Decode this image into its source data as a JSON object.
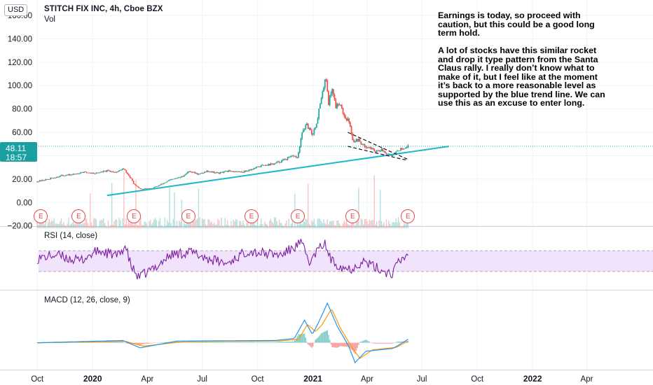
{
  "header": {
    "currency": "USD",
    "symbol_title": "STITCH FIX INC, 4h, Cboe BZX",
    "volume_label": "Vol"
  },
  "annotation_text": "Earnings is today, so proceed with caution, but this could be a good long term hold.\n\nA lot of stocks have this similar rocket and drop it type pattern from the Santa Claus rally. I really don’t know what to make of it, but I feel like at the moment it’s back to a more reasonable level as supported by the blue trend line. We can use this as an excuse to enter long.",
  "price_tag": {
    "price": "48.11",
    "countdown": "18:57"
  },
  "earnings_marker_label": "E",
  "earnings_markers": [
    "2019-10-07",
    "2019-12-09",
    "2020-03-10",
    "2020-06-08",
    "2020-09-21",
    "2020-12-07",
    "2021-03-08",
    "2021-06-08"
  ],
  "colors": {
    "up": "#26a69a",
    "down": "#ef5350",
    "trendline": "#1fb8c8",
    "rsi_line": "#7b1fa2",
    "rsi_band": "#f1e3fb",
    "macd_line": "#2196f3",
    "signal_line": "#ff9800",
    "price_line": "#26a69a",
    "earnings": "#e8454d"
  },
  "indicators": {
    "rsi_label": "RSI (14, close)",
    "macd_label": "MACD (12, 26, close, 9)"
  },
  "chart_data": {
    "type": "candlestick",
    "symbol": "STITCH FIX INC",
    "interval": "4h",
    "exchange": "Cboe BZX",
    "current_price": 48.11,
    "x_axis": {
      "range": [
        "2019-09-25",
        "2022-07-20"
      ],
      "tick_labels": [
        "Oct",
        "2020",
        "Apr",
        "Jul",
        "Oct",
        "2021",
        "Apr",
        "Jul",
        "Oct",
        "2022",
        "Apr"
      ],
      "tick_dates": [
        "2019-10-01",
        "2020-01-01",
        "2020-04-01",
        "2020-07-01",
        "2020-10-01",
        "2021-01-01",
        "2021-04-01",
        "2021-07-01",
        "2021-10-01",
        "2022-01-01",
        "2022-04-01"
      ]
    },
    "y_axis": {
      "range": [
        -22,
        172
      ],
      "tick_labels": [
        "160.00",
        "140.00",
        "120.00",
        "100.00",
        "80.00",
        "60.00",
        "40.00",
        "20.00",
        "0.00",
        "−20.00"
      ],
      "tick_values": [
        160,
        140,
        120,
        100,
        80,
        60,
        40,
        20,
        0,
        -20
      ]
    },
    "price_path": [
      [
        "2019-10-01",
        18
      ],
      [
        "2019-10-20",
        20
      ],
      [
        "2019-11-10",
        23
      ],
      [
        "2019-11-30",
        24
      ],
      [
        "2019-12-15",
        26
      ],
      [
        "2020-01-05",
        25
      ],
      [
        "2020-01-25",
        27
      ],
      [
        "2020-02-10",
        26
      ],
      [
        "2020-02-21",
        29
      ],
      [
        "2020-03-01",
        23
      ],
      [
        "2020-03-05",
        20
      ],
      [
        "2020-03-12",
        14
      ],
      [
        "2020-03-23",
        11
      ],
      [
        "2020-04-08",
        12
      ],
      [
        "2020-04-22",
        15
      ],
      [
        "2020-05-08",
        19
      ],
      [
        "2020-05-28",
        22
      ],
      [
        "2020-06-10",
        27
      ],
      [
        "2020-06-25",
        24
      ],
      [
        "2020-07-10",
        27
      ],
      [
        "2020-07-28",
        25
      ],
      [
        "2020-08-15",
        27
      ],
      [
        "2020-09-05",
        26
      ],
      [
        "2020-09-25",
        29
      ],
      [
        "2020-10-10",
        32
      ],
      [
        "2020-10-28",
        33
      ],
      [
        "2020-11-12",
        36
      ],
      [
        "2020-11-30",
        40
      ],
      [
        "2020-12-06",
        38
      ],
      [
        "2020-12-09",
        45
      ],
      [
        "2020-12-15",
        62
      ],
      [
        "2020-12-22",
        66
      ],
      [
        "2020-12-31",
        58
      ],
      [
        "2021-01-07",
        68
      ],
      [
        "2021-01-12",
        82
      ],
      [
        "2021-01-18",
        95
      ],
      [
        "2021-01-22",
        111
      ],
      [
        "2021-01-27",
        85
      ],
      [
        "2021-02-02",
        98
      ],
      [
        "2021-02-08",
        82
      ],
      [
        "2021-02-15",
        86
      ],
      [
        "2021-02-22",
        74
      ],
      [
        "2021-03-01",
        70
      ],
      [
        "2021-03-05",
        62
      ],
      [
        "2021-03-09",
        52
      ],
      [
        "2021-03-17",
        54
      ],
      [
        "2021-03-25",
        49
      ],
      [
        "2021-04-05",
        47
      ],
      [
        "2021-04-15",
        44
      ],
      [
        "2021-04-25",
        45
      ],
      [
        "2021-05-05",
        42
      ],
      [
        "2021-05-14",
        40
      ],
      [
        "2021-05-21",
        44
      ],
      [
        "2021-05-28",
        46
      ],
      [
        "2021-06-08",
        48.11
      ]
    ],
    "trend_line": {
      "start": [
        "2020-01-25",
        6
      ],
      "end": [
        "2021-08-15",
        48
      ]
    },
    "wedge_lines": [
      {
        "start": [
          "2021-02-28",
          60
        ],
        "end": [
          "2021-06-07",
          37
        ]
      },
      {
        "start": [
          "2021-02-28",
          48
        ],
        "end": [
          "2021-06-07",
          36
        ]
      }
    ],
    "rsi": {
      "range": [
        0,
        100
      ],
      "upper_band": 70,
      "lower_band": 30,
      "path": [
        [
          "2019-10-01",
          55
        ],
        [
          "2019-11-01",
          62
        ],
        [
          "2019-12-10",
          50
        ],
        [
          "2020-01-10",
          70
        ],
        [
          "2020-02-12",
          60
        ],
        [
          "2020-02-24",
          80
        ],
        [
          "2020-03-05",
          40
        ],
        [
          "2020-03-17",
          18
        ],
        [
          "2020-04-10",
          35
        ],
        [
          "2020-05-10",
          62
        ],
        [
          "2020-06-10",
          68
        ],
        [
          "2020-07-10",
          55
        ],
        [
          "2020-08-10",
          45
        ],
        [
          "2020-09-15",
          70
        ],
        [
          "2020-10-10",
          65
        ],
        [
          "2020-11-10",
          62
        ],
        [
          "2020-12-12",
          85
        ],
        [
          "2020-12-28",
          45
        ],
        [
          "2021-01-05",
          65
        ],
        [
          "2021-01-20",
          85
        ],
        [
          "2021-02-01",
          50
        ],
        [
          "2021-02-20",
          38
        ],
        [
          "2021-03-05",
          35
        ],
        [
          "2021-03-25",
          50
        ],
        [
          "2021-04-20",
          35
        ],
        [
          "2021-05-12",
          25
        ],
        [
          "2021-05-22",
          45
        ],
        [
          "2021-06-08",
          65
        ]
      ]
    },
    "macd": {
      "range": [
        -8,
        16
      ],
      "macd_path": [
        [
          "2019-10-01",
          0
        ],
        [
          "2020-02-20",
          0.8
        ],
        [
          "2020-03-20",
          -1.8
        ],
        [
          "2020-05-20",
          0.6
        ],
        [
          "2020-10-30",
          0.8
        ],
        [
          "2020-12-01",
          1.5
        ],
        [
          "2020-12-18",
          8
        ],
        [
          "2020-12-31",
          3
        ],
        [
          "2021-01-10",
          7
        ],
        [
          "2021-01-25",
          14
        ],
        [
          "2021-02-10",
          6
        ],
        [
          "2021-03-01",
          -1
        ],
        [
          "2021-03-12",
          -7
        ],
        [
          "2021-03-30",
          -3
        ],
        [
          "2021-05-14",
          -2
        ],
        [
          "2021-06-08",
          1.2
        ]
      ],
      "signal_path": [
        [
          "2019-10-01",
          0
        ],
        [
          "2020-02-25",
          0.5
        ],
        [
          "2020-03-25",
          -1.2
        ],
        [
          "2020-06-01",
          0.4
        ],
        [
          "2020-11-05",
          0.6
        ],
        [
          "2020-12-08",
          1.2
        ],
        [
          "2020-12-23",
          6.5
        ],
        [
          "2021-01-05",
          4
        ],
        [
          "2021-01-15",
          6
        ],
        [
          "2021-02-01",
          12
        ],
        [
          "2021-02-16",
          5
        ],
        [
          "2021-03-08",
          -2
        ],
        [
          "2021-03-20",
          -5.5
        ],
        [
          "2021-04-10",
          -2.5
        ],
        [
          "2021-05-20",
          -1.6
        ],
        [
          "2021-06-08",
          0.6
        ]
      ]
    }
  }
}
